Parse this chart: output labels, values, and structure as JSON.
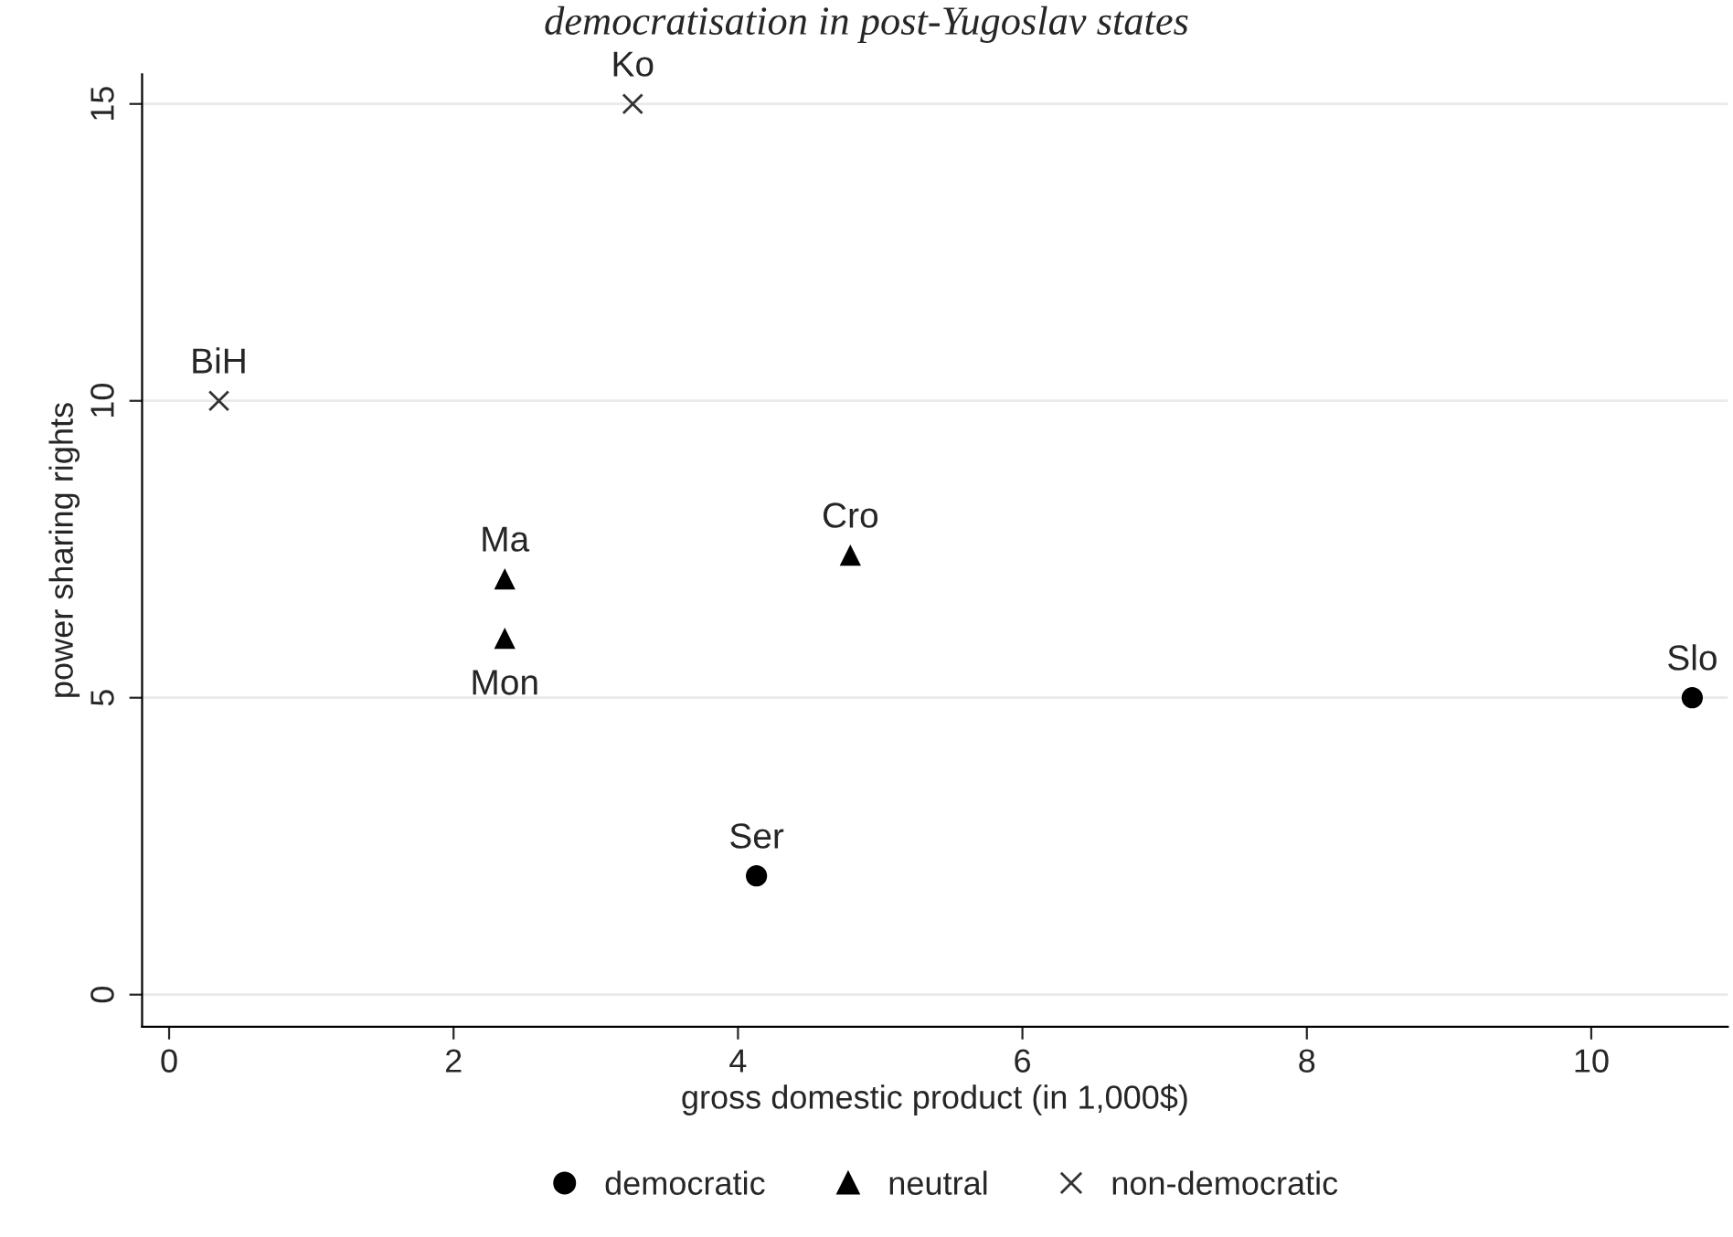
{
  "chart_data": {
    "type": "scatter",
    "title": "democratisation in post-Yugoslav states",
    "xlabel": "gross domestic product (in 1,000$)",
    "ylabel": "power sharing rights",
    "series": [
      {
        "name": "democratic",
        "color": "#000000",
        "marker": "circle",
        "x": [
          4.13,
          10.71
        ],
        "values": [
          2,
          5
        ]
      },
      {
        "name": "neutral",
        "color": "#000000",
        "marker": "triangle",
        "x": [
          2.36,
          2.36,
          4.79
        ],
        "values": [
          7,
          6,
          7.4
        ]
      },
      {
        "name": "non-democratic",
        "color": "#333333",
        "marker": "cross",
        "x": [
          0.35,
          3.26
        ],
        "values": [
          10,
          15
        ]
      }
    ],
    "annotations": [
      {
        "text": "Ser",
        "x": 4.13,
        "y": 2
      },
      {
        "text": "Slo",
        "x": 10.71,
        "y": 5
      },
      {
        "text": "Ma",
        "x": 2.36,
        "y": 7
      },
      {
        "text": "Mon",
        "x": 2.36,
        "y": 6
      },
      {
        "text": "Cro",
        "x": 4.79,
        "y": 7.4
      },
      {
        "text": "BiH",
        "x": 0.35,
        "y": 10
      },
      {
        "text": "Ko",
        "x": 3.26,
        "y": 15
      }
    ],
    "xlim": [
      -0.19,
      10.96
    ],
    "ylim": [
      -0.54,
      15.5
    ],
    "xticks": [
      0,
      2,
      4,
      6,
      8,
      10
    ],
    "yticks": [
      0,
      5,
      10,
      15
    ],
    "grid": "y",
    "legend": "bottom"
  }
}
